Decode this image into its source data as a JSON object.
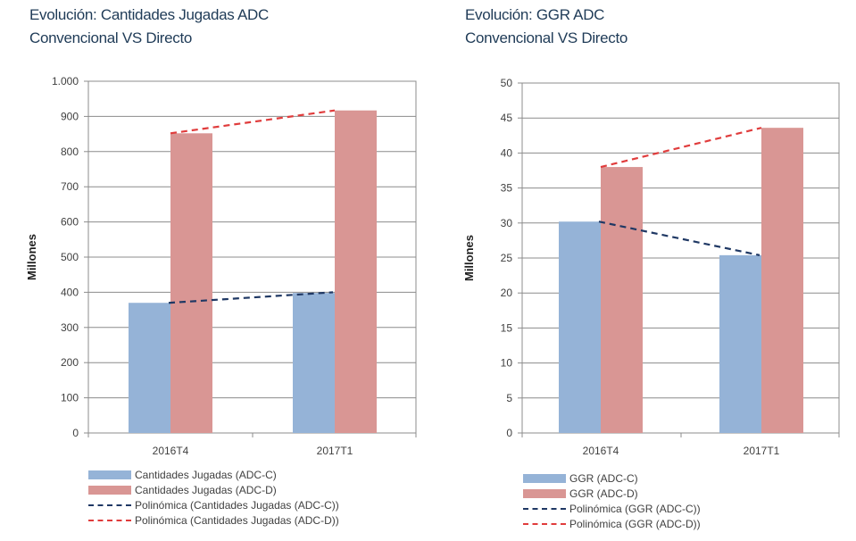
{
  "chart_data": [
    {
      "type": "bar",
      "title_lines": [
        "Evolución: Cantidades Jugadas ADC",
        "Convencional VS Directo"
      ],
      "ylabel": "Millones",
      "ylim": [
        0,
        1000
      ],
      "yticks": [
        0,
        100,
        200,
        300,
        400,
        500,
        600,
        700,
        800,
        900,
        1000
      ],
      "ytick_labels": [
        "0",
        "100",
        "200",
        "300",
        "400",
        "500",
        "600",
        "700",
        "800",
        "900",
        "1.000"
      ],
      "categories": [
        "2016T4",
        "2017T1"
      ],
      "grid": true,
      "legend_position": "bottom",
      "series": [
        {
          "name": "Cantidades Jugadas (ADC-C)",
          "values": [
            370,
            398
          ],
          "color": "#95b3d7"
        },
        {
          "name": "Cantidades Jugadas (ADC-D)",
          "values": [
            852,
            917
          ],
          "color": "#d99694"
        }
      ],
      "trendlines": [
        {
          "name": "Polinómica (Cantidades Jugadas (ADC-C))",
          "values": [
            370,
            400
          ],
          "color": "#1f3864"
        },
        {
          "name": "Polinómica (Cantidades Jugadas (ADC-D))",
          "values": [
            852,
            917
          ],
          "color": "#e03c3c"
        }
      ]
    },
    {
      "type": "bar",
      "title_lines": [
        "Evolución: GGR ADC",
        "Convencional VS Directo"
      ],
      "ylabel": "Millones",
      "ylim": [
        0,
        50
      ],
      "yticks": [
        0,
        5,
        10,
        15,
        20,
        25,
        30,
        35,
        40,
        45,
        50
      ],
      "ytick_labels": [
        "0",
        "5",
        "10",
        "15",
        "20",
        "25",
        "30",
        "35",
        "40",
        "45",
        "50"
      ],
      "categories": [
        "2016T4",
        "2017T1"
      ],
      "grid": true,
      "legend_position": "bottom",
      "series": [
        {
          "name": "GGR (ADC-C)",
          "values": [
            30.2,
            25.4
          ],
          "color": "#95b3d7"
        },
        {
          "name": "GGR (ADC-D)",
          "values": [
            38.0,
            43.6
          ],
          "color": "#d99694"
        }
      ],
      "trendlines": [
        {
          "name": "Polinómica (GGR (ADC-C))",
          "values": [
            30.2,
            25.4
          ],
          "color": "#1f3864"
        },
        {
          "name": "Polinómica (GGR (ADC-D))",
          "values": [
            38.0,
            43.6
          ],
          "color": "#e03c3c"
        }
      ]
    }
  ]
}
